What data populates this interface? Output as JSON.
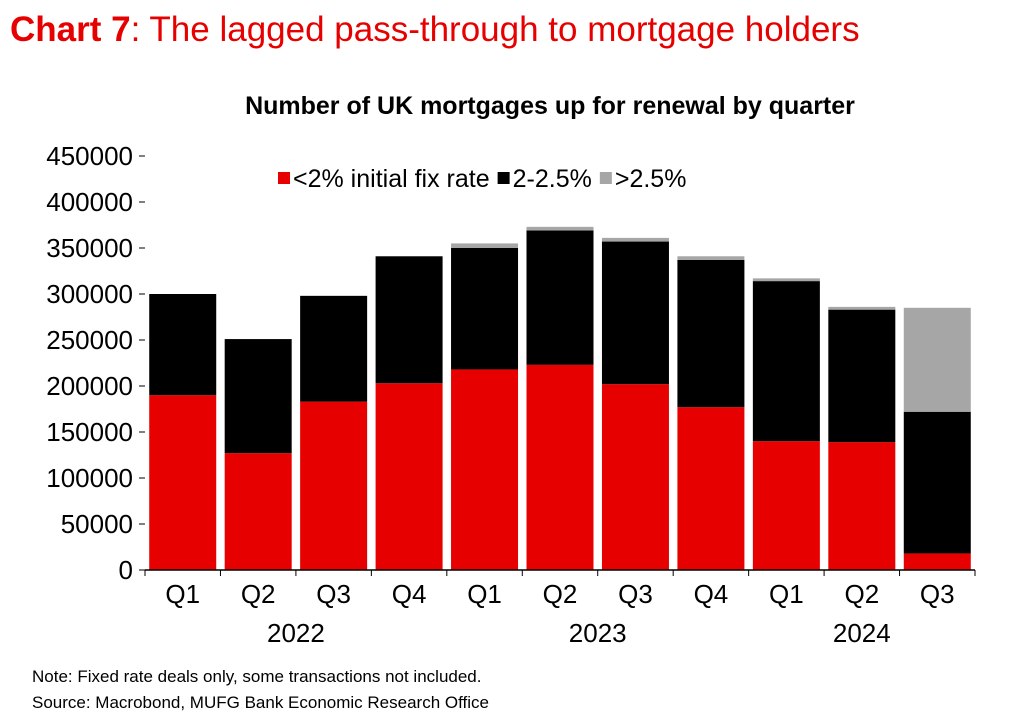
{
  "header": {
    "label": "Chart 7",
    "separator": ": ",
    "text": "The lagged pass-through to mortgage holders"
  },
  "chart_data": {
    "type": "bar",
    "stacked": true,
    "title": "Number of UK mortgages up for renewal by quarter",
    "categories": [
      "Q1",
      "Q2",
      "Q3",
      "Q4",
      "Q1",
      "Q2",
      "Q3",
      "Q4",
      "Q1",
      "Q2",
      "Q3"
    ],
    "years": [
      {
        "label": "2022",
        "start": 0,
        "end": 3
      },
      {
        "label": "2023",
        "start": 4,
        "end": 7
      },
      {
        "label": "2024",
        "start": 8,
        "end": 10
      }
    ],
    "series": [
      {
        "name": "<2% initial fix rate",
        "color": "#e60000",
        "values": [
          190000,
          127000,
          183000,
          203000,
          218000,
          223000,
          202000,
          177000,
          140000,
          139000,
          18000
        ]
      },
      {
        "name": "2-2.5%",
        "color": "#000000",
        "values": [
          110000,
          124000,
          115000,
          138000,
          132000,
          146000,
          155000,
          160000,
          174000,
          144000,
          154000
        ]
      },
      {
        "name": ">2.5%",
        "color": "#a6a6a6",
        "values": [
          0,
          0,
          0,
          0,
          5000,
          4000,
          4000,
          4000,
          3000,
          3000,
          113000
        ]
      }
    ],
    "ylim": [
      0,
      450000
    ],
    "yticks": [
      0,
      50000,
      100000,
      150000,
      200000,
      250000,
      300000,
      350000,
      400000,
      450000
    ],
    "legend_position": "top",
    "grid": false
  },
  "notes": {
    "note": "Note: Fixed rate deals only, some transactions not included.",
    "source": "Source: Macrobond, MUFG Bank Economic Research Office"
  }
}
